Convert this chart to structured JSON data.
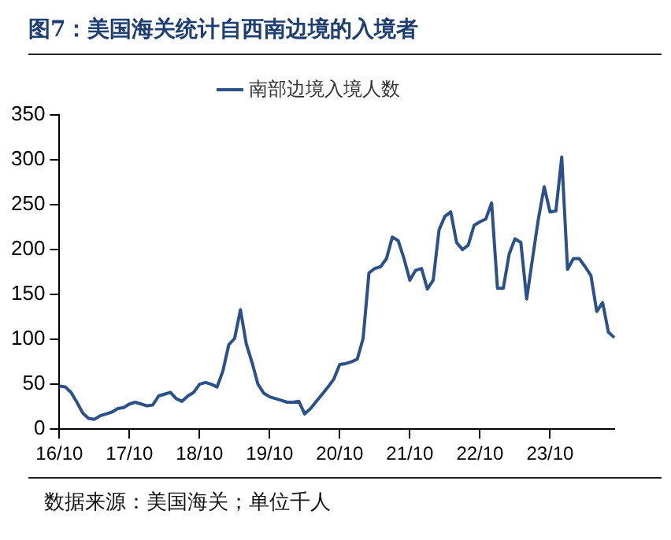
{
  "chart_data": {
    "type": "line",
    "title": "图7：美国海关统计自西南边境的入境者",
    "annotations": [
      "数据来源：美国海关；单位千人"
    ],
    "categories": [
      "16/10",
      null,
      null,
      null,
      null,
      null,
      null,
      null,
      null,
      null,
      null,
      null,
      "17/10",
      null,
      null,
      null,
      null,
      null,
      null,
      null,
      null,
      null,
      null,
      null,
      "18/10",
      null,
      null,
      null,
      null,
      null,
      null,
      null,
      null,
      null,
      null,
      null,
      "19/10",
      null,
      null,
      null,
      null,
      null,
      null,
      null,
      null,
      null,
      null,
      null,
      "20/10",
      null,
      null,
      null,
      null,
      null,
      null,
      null,
      null,
      null,
      null,
      null,
      "21/10",
      null,
      null,
      null,
      null,
      null,
      null,
      null,
      null,
      null,
      null,
      null,
      "22/10",
      null,
      null,
      null,
      null,
      null,
      null,
      null,
      null,
      null,
      null,
      null,
      "23/10",
      null,
      null,
      null,
      null,
      null,
      null,
      null,
      null,
      null,
      null,
      null
    ],
    "series": [
      {
        "name": "南部边境入境人数",
        "color": "#2a5189",
        "values": [
          48,
          47,
          41,
          30,
          18,
          12,
          11,
          15,
          17,
          19,
          23,
          24,
          28,
          30,
          28,
          26,
          27,
          37,
          39,
          41,
          34,
          31,
          37,
          41,
          50,
          52,
          50,
          47,
          65,
          94,
          101,
          133,
          95,
          74,
          50,
          40,
          36,
          34,
          32,
          30,
          30,
          31,
          17,
          23,
          31,
          39,
          47,
          56,
          72,
          73,
          75,
          78,
          101,
          174,
          179,
          181,
          190,
          214,
          210,
          190,
          166,
          177,
          179,
          156,
          166,
          222,
          237,
          242,
          208,
          200,
          205,
          227,
          231,
          234,
          252,
          157,
          157,
          195,
          212,
          208,
          145,
          190,
          234,
          270,
          242,
          243,
          303,
          178,
          190,
          190,
          181,
          171,
          131,
          141,
          108,
          102
        ]
      }
    ],
    "ylim": [
      0,
      350
    ],
    "yticks": [
      0,
      50,
      100,
      150,
      200,
      250,
      300,
      350
    ],
    "grid": false,
    "legend": "top",
    "marker": "none",
    "line_style": "solid"
  }
}
